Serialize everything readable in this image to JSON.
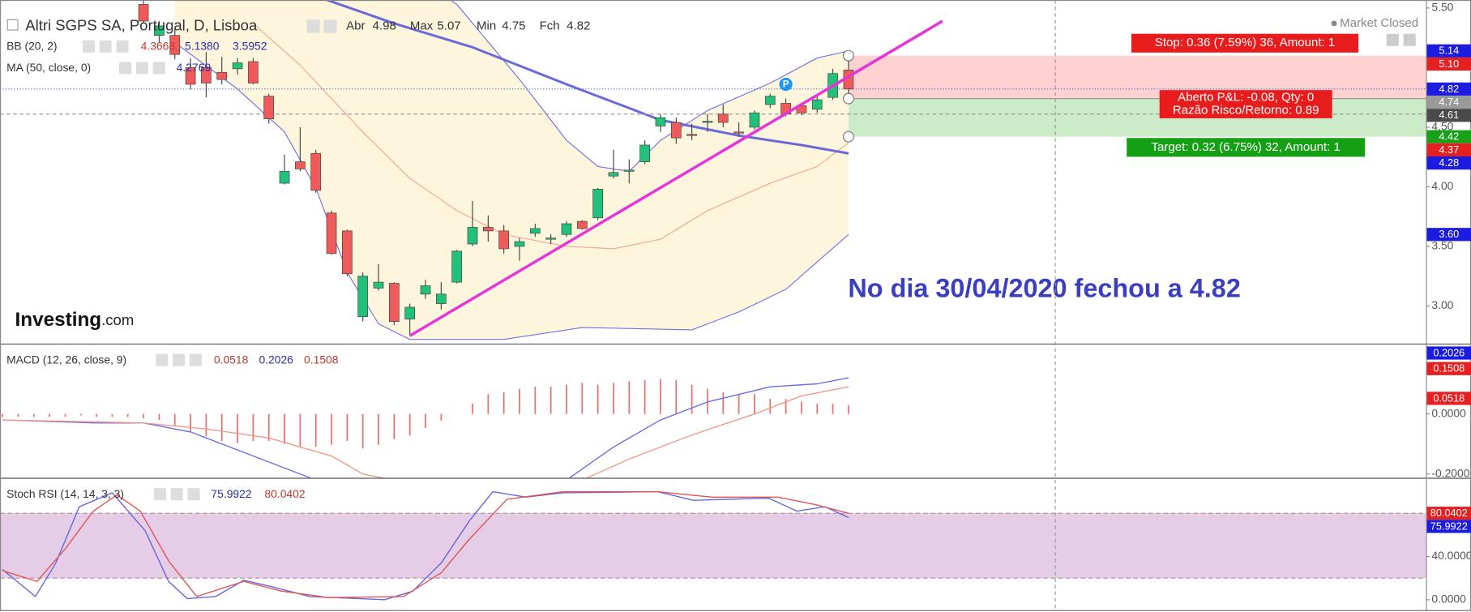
{
  "chart_data": [
    {
      "type": "candlestick",
      "title": "Altri SGPS SA, Portugal, D, Lisboa",
      "header_stats": [
        {
          "name": "Abr",
          "value": 4.98
        },
        {
          "name": "Max",
          "value": 5.07
        },
        {
          "name": "Min",
          "value": 4.75
        },
        {
          "name": "Fch",
          "value": 4.82
        }
      ],
      "status": "Market Closed",
      "logo": "Investing",
      "logo_suffix": ".com",
      "xlim": [
        -9.16,
        81.86
      ],
      "ylim": [
        2.685,
        5.567
      ],
      "yticks": [
        {
          "value": 5.5,
          "label": "5.50"
        },
        {
          "value": 5,
          "label": "5.00"
        },
        {
          "value": 4.5,
          "label": "4.50"
        },
        {
          "value": 4,
          "label": "4.00"
        },
        {
          "value": 3.5,
          "label": "3.50"
        },
        {
          "value": 3,
          "label": "3.00"
        }
      ],
      "up_color": "#21c17a",
      "down_color": "#ef5a5a",
      "x": [
        0,
        1,
        2,
        3,
        4,
        5,
        6,
        7,
        8,
        9,
        10,
        11,
        12,
        13,
        14,
        15,
        16,
        17,
        18,
        19,
        20,
        21,
        22,
        23,
        24,
        25,
        26,
        27,
        28,
        29,
        30,
        31,
        32,
        33,
        34,
        35,
        36,
        37,
        38,
        39,
        40,
        41,
        42,
        43,
        44,
        45
      ],
      "open": [
        5.53,
        5.27,
        5.27,
        5.0,
        5.0,
        4.96,
        4.99,
        5.05,
        4.76,
        4.03,
        4.21,
        4.28,
        3.78,
        3.63,
        2.91,
        3.15,
        3.19,
        2.89,
        3.1,
        3.02,
        3.2,
        3.52,
        3.66,
        3.63,
        3.5,
        3.61,
        3.56,
        3.6,
        3.71,
        3.74,
        4.09,
        4.13,
        4.21,
        4.51,
        4.54,
        4.44,
        4.54,
        4.61,
        4.46,
        4.5,
        4.69,
        4.7,
        4.68,
        4.65,
        4.75,
        4.98
      ],
      "high": [
        5.57,
        5.39,
        5.32,
        5.08,
        5.13,
        5.09,
        5.08,
        5.08,
        4.78,
        4.27,
        4.5,
        4.31,
        3.8,
        3.64,
        3.28,
        3.35,
        3.2,
        3.02,
        3.22,
        3.2,
        3.47,
        3.88,
        3.76,
        3.68,
        3.57,
        3.69,
        3.6,
        3.71,
        3.72,
        3.99,
        4.31,
        4.23,
        4.39,
        4.61,
        4.58,
        4.53,
        4.61,
        4.69,
        4.54,
        4.64,
        4.78,
        4.74,
        4.7,
        4.76,
        4.99,
        5.07
      ],
      "low": [
        5.37,
        5.21,
        5.07,
        4.82,
        4.75,
        4.86,
        4.94,
        4.86,
        4.53,
        4.02,
        4.13,
        3.95,
        3.43,
        3.25,
        2.87,
        3.13,
        2.84,
        2.75,
        3.06,
        2.97,
        3.19,
        3.5,
        3.54,
        3.44,
        3.38,
        3.58,
        3.52,
        3.58,
        3.64,
        3.72,
        4.07,
        4.03,
        4.19,
        4.46,
        4.36,
        4.39,
        4.46,
        4.5,
        4.42,
        4.48,
        4.66,
        4.59,
        4.6,
        4.62,
        4.73,
        4.75
      ],
      "close": [
        5.39,
        5.35,
        5.11,
        4.86,
        4.87,
        4.9,
        5.04,
        4.87,
        4.57,
        4.13,
        4.15,
        3.97,
        3.44,
        3.27,
        3.25,
        3.2,
        2.87,
        2.99,
        3.17,
        3.1,
        3.46,
        3.66,
        3.63,
        3.48,
        3.54,
        3.65,
        3.57,
        3.69,
        3.65,
        3.98,
        4.12,
        4.14,
        4.35,
        4.58,
        4.41,
        4.43,
        4.55,
        4.54,
        4.45,
        4.62,
        4.76,
        4.61,
        4.62,
        4.73,
        4.95,
        4.82
      ],
      "indicators": [
        {
          "name": "BB (20, 2)",
          "readout": [
            "4.3668",
            "5.1380",
            "3.5952"
          ],
          "readout_colors": [
            "#c0392b",
            "#2c2ca8",
            "#2c2ca8"
          ],
          "fill": "#fdf5dc",
          "lines": [
            {
              "color": "#f0a896",
              "x": [
                7,
                10,
                14,
                17,
                20,
                23,
                27,
                30,
                33,
                36,
                40,
                43,
                45
              ],
              "values": [
                5.37,
                5.02,
                4.46,
                4.07,
                3.8,
                3.6,
                3.5,
                3.48,
                3.56,
                3.8,
                4.03,
                4.17,
                4.37
              ]
            },
            {
              "color": "#7373e0",
              "x": [
                19,
                20,
                24,
                27,
                29,
                31,
                33,
                36,
                40,
                43,
                45
              ],
              "values": [
                5.62,
                5.53,
                4.9,
                4.39,
                4.17,
                4.13,
                4.39,
                4.64,
                4.87,
                5.08,
                5.14
              ]
            },
            {
              "color": "#7373e0",
              "x": [
                2,
                6,
                9,
                11,
                13,
                15,
                17,
                23,
                28,
                35,
                38,
                41,
                43,
                45
              ],
              "values": [
                5.21,
                4.82,
                4.46,
                3.99,
                3.28,
                2.85,
                2.72,
                2.72,
                2.82,
                2.8,
                2.95,
                3.14,
                3.37,
                3.6
              ]
            }
          ]
        },
        {
          "name": "MA (50, close, 0)",
          "readout": [
            "4.2769"
          ],
          "readout_colors": [
            "#2c2ca8"
          ],
          "lines": [
            {
              "color": "#6c6ad8",
              "x": [
                11,
                16,
                21,
                27,
                33,
                38,
                42,
                45
              ],
              "values": [
                5.6,
                5.37,
                5.17,
                4.86,
                4.56,
                4.43,
                4.35,
                4.28
              ]
            }
          ]
        }
      ],
      "trendline": {
        "color": "#e535d9",
        "x": [
          17,
          51
        ],
        "values": [
          2.75,
          5.39
        ]
      },
      "position": {
        "x": [
          45,
          81.86
        ],
        "entry": 4.74,
        "stop": 5.1,
        "target": 4.42,
        "stop_label": "Stop: 0.36 (7.59%) 36, Amount: 1",
        "target_label": "Target: 0.32 (6.75%) 32, Amount: 1",
        "pnl_label": "Aberto P&L: -0.08, Qty: 0",
        "ratio_label": "Razão Risco/Retorno: 0.89"
      },
      "crosshair": {
        "x": 58.2,
        "y": 4.61
      },
      "marker": {
        "x": 41,
        "y": 4.86,
        "label": "P"
      },
      "annotation": "No dia 30/04/2020 fechou a 4.82",
      "badges": [
        {
          "value": 5.14,
          "label": "5.14",
          "color": "#1c1ce0"
        },
        {
          "value": 5.1,
          "label": "5.10",
          "color": "#e62020"
        },
        {
          "value": 4.82,
          "label": "4.82",
          "color": "#1c1ce0"
        },
        {
          "value": 4.74,
          "label": "4.74",
          "color": "#9a9a9a"
        },
        {
          "value": 4.61,
          "label": "4.61",
          "color": "#4a4a4a"
        },
        {
          "value": 4.42,
          "label": "4.42",
          "color": "#19a019"
        },
        {
          "value": 4.37,
          "label": "4.37",
          "color": "#e62020"
        },
        {
          "value": 4.28,
          "label": "4.28",
          "color": "#1c1ce0"
        },
        {
          "value": 3.6,
          "label": "3.60",
          "color": "#1c1ce0"
        }
      ]
    },
    {
      "type": "macd",
      "title": "MACD (12, 26, close, 9)",
      "readout": [
        "0.0518",
        "0.2026",
        "0.1508"
      ],
      "readout_colors": [
        "#c0392b",
        "#2c2ca8",
        "#c0392b"
      ],
      "xlim": [
        -9.16,
        81.86
      ],
      "ylim": [
        -0.2125,
        0.231
      ],
      "yticks": [
        {
          "value": 0,
          "label": "0.0000"
        },
        {
          "value": -0.2,
          "label": "-0.2000"
        }
      ],
      "histogram": {
        "color": "#e87070",
        "x": [
          -9,
          -8,
          -7,
          -6,
          -5,
          -4,
          -3,
          -2,
          -1,
          0,
          1,
          2,
          3,
          4,
          5,
          6,
          7,
          8,
          9,
          10,
          11,
          12,
          13,
          14,
          15,
          16,
          17,
          18,
          19,
          20,
          21,
          22,
          23,
          24,
          25,
          26,
          27,
          28,
          29,
          30,
          31,
          32,
          33,
          34,
          35,
          36,
          37,
          38,
          39,
          40,
          41,
          42,
          43,
          44,
          45
        ],
        "values": [
          -0.01,
          -0.01,
          -0.01,
          -0.01,
          -0.01,
          -0.005,
          -0.01,
          -0.01,
          -0.01,
          -0.015,
          -0.02,
          -0.04,
          -0.06,
          -0.075,
          -0.09,
          -0.097,
          -0.09,
          -0.09,
          -0.1,
          -0.109,
          -0.109,
          -0.103,
          -0.09,
          -0.115,
          -0.103,
          -0.084,
          -0.072,
          -0.047,
          -0.022,
          0,
          0.034,
          0.066,
          0.072,
          0.084,
          0.091,
          0.091,
          0.097,
          0.103,
          0.097,
          0.103,
          0.109,
          0.113,
          0.116,
          0.113,
          0.097,
          0.084,
          0.072,
          0.066,
          0.066,
          0.05,
          0.05,
          0.041,
          0.034,
          0.034,
          0.028
        ]
      },
      "series": [
        {
          "color": "#6d6de6",
          "x": [
            -9,
            -3,
            0,
            3,
            6,
            9,
            11,
            27,
            30,
            33,
            36,
            40,
            43,
            45
          ],
          "values": [
            -0.02,
            -0.03,
            -0.03,
            -0.06,
            -0.12,
            -0.18,
            -0.22,
            -0.22,
            -0.11,
            -0.02,
            0.04,
            0.09,
            0.1,
            0.12
          ]
        },
        {
          "color": "#ef9a8c",
          "x": [
            -9,
            0,
            4,
            8,
            12,
            14,
            16,
            28,
            31,
            35,
            39,
            42,
            45
          ],
          "values": [
            -0.02,
            -0.03,
            -0.05,
            -0.08,
            -0.14,
            -0.2,
            -0.22,
            -0.22,
            -0.15,
            -0.07,
            0.0,
            0.06,
            0.09
          ]
        }
      ],
      "badges": [
        {
          "value": 0.2026,
          "label": "0.2026",
          "color": "#1c1ce0"
        },
        {
          "value": 0.1508,
          "label": "0.1508",
          "color": "#e62020"
        },
        {
          "value": 0.0518,
          "label": "0.0518",
          "color": "#e62020"
        }
      ]
    },
    {
      "type": "line",
      "title": "Stoch RSI (14, 14, 3, 3)",
      "readout": [
        "75.9922",
        "80.0402"
      ],
      "readout_colors": [
        "#2c2ca8",
        "#c0392b"
      ],
      "xlim": [
        -9.16,
        81.86
      ],
      "ylim": [
        -9.6,
        112
      ],
      "yticks": [
        {
          "value": 0,
          "label": "0.0000"
        },
        {
          "value": 40,
          "label": "40.0000"
        }
      ],
      "band": [
        20,
        80
      ],
      "band_color": "#e5cde7",
      "series": [
        {
          "color": "#6666dd",
          "x": [
            -9,
            -6.9,
            -5.6,
            -4.1,
            -2,
            0.1,
            1.6,
            2.8,
            4.6,
            6.4,
            8.2,
            10.6,
            15.4,
            17.2,
            19,
            20.8,
            22.3,
            24.4,
            26.8,
            32.8,
            35.1,
            39.9,
            41.7,
            43.5,
            45
          ],
          "values": [
            28,
            3,
            34,
            86,
            99,
            64,
            17,
            1,
            3,
            18,
            12,
            3,
            0,
            8,
            34,
            73,
            100,
            95,
            99,
            100,
            92,
            94,
            82,
            86,
            76
          ]
        },
        {
          "color": "#e05555",
          "x": [
            -9,
            -6.8,
            -5,
            -3.2,
            -1.7,
            -0.2,
            1.6,
            3.4,
            6.4,
            8.8,
            11.8,
            16.6,
            19,
            20.8,
            23.2,
            26.8,
            32.8,
            36.3,
            40.5,
            42.9,
            45
          ],
          "values": [
            27,
            17,
            47,
            82,
            97,
            82,
            36,
            3,
            17,
            8,
            2,
            3,
            25,
            56,
            93,
            100,
            100,
            95,
            95,
            88,
            80
          ]
        }
      ],
      "badges": [
        {
          "value": 80.0402,
          "label": "80.0402",
          "color": "#e62020"
        },
        {
          "value": 75.9922,
          "label": "75.9922",
          "color": "#1c1ce0"
        }
      ]
    }
  ]
}
